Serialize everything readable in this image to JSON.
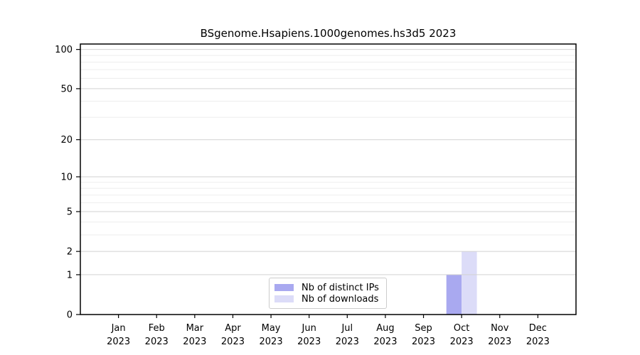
{
  "title": "BSgenome.Hsapiens.1000genomes.hs3d5 2023",
  "chart_data": {
    "type": "bar",
    "title": "BSgenome.Hsapiens.1000genomes.hs3d5 2023",
    "categories": [
      "Jan",
      "Feb",
      "Mar",
      "Apr",
      "May",
      "Jun",
      "Jul",
      "Aug",
      "Sep",
      "Oct",
      "Nov",
      "Dec"
    ],
    "x_year": "2023",
    "series": [
      {
        "name": "Nb of distinct IPs",
        "color": "#a9a9f0",
        "values": [
          0,
          0,
          0,
          0,
          0,
          0,
          0,
          0,
          0,
          1,
          0,
          0
        ]
      },
      {
        "name": "Nb of downloads",
        "color": "#dcdcf8",
        "values": [
          0,
          0,
          0,
          0,
          0,
          0,
          0,
          0,
          0,
          2,
          0,
          0
        ]
      }
    ],
    "y_scale": "log10(value+1)",
    "y_ticks": [
      0,
      1,
      2,
      5,
      10,
      20,
      50,
      100
    ],
    "y_minor_ticks": [
      3,
      4,
      6,
      7,
      8,
      9,
      30,
      40,
      60,
      70,
      80,
      90
    ],
    "y_max": 110,
    "ylim": [
      0,
      110
    ],
    "grid": true,
    "legend_position": "bottom-center",
    "colors": {
      "major_gridline": "#d2d2d2",
      "minor_gridline": "#ededed",
      "axis": "#000000",
      "text": "#000000",
      "legend_border": "#cccccc",
      "background": "#ffffff"
    }
  }
}
